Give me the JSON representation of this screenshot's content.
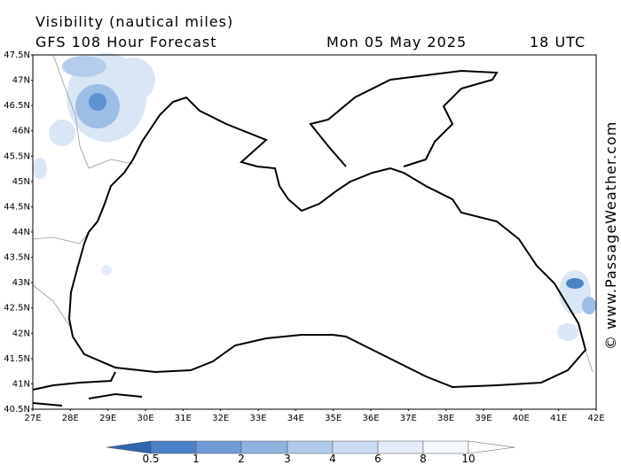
{
  "header": {
    "title": "Visibility (nautical miles)",
    "model": "GFS 108 Hour Forecast",
    "date": "Mon 05 May 2025",
    "time": "18 UTC"
  },
  "map": {
    "lat_labels": [
      "47.5N",
      "47N",
      "46.5N",
      "46N",
      "45.5N",
      "45N",
      "44.5N",
      "44N",
      "43.5N",
      "43N",
      "42.5N",
      "42N",
      "41.5N",
      "41N",
      "40.5N"
    ],
    "lon_labels": [
      "27E",
      "28E",
      "29E",
      "30E",
      "31E",
      "32E",
      "33E",
      "34E",
      "35E",
      "36E",
      "37E",
      "38E",
      "39E",
      "40E",
      "41E",
      "42E"
    ]
  },
  "legend": {
    "labels": [
      "0.5",
      "1",
      "2",
      "3",
      "4",
      "6",
      "8",
      "10"
    ]
  },
  "watermark": "© www.PassageWeather.com"
}
